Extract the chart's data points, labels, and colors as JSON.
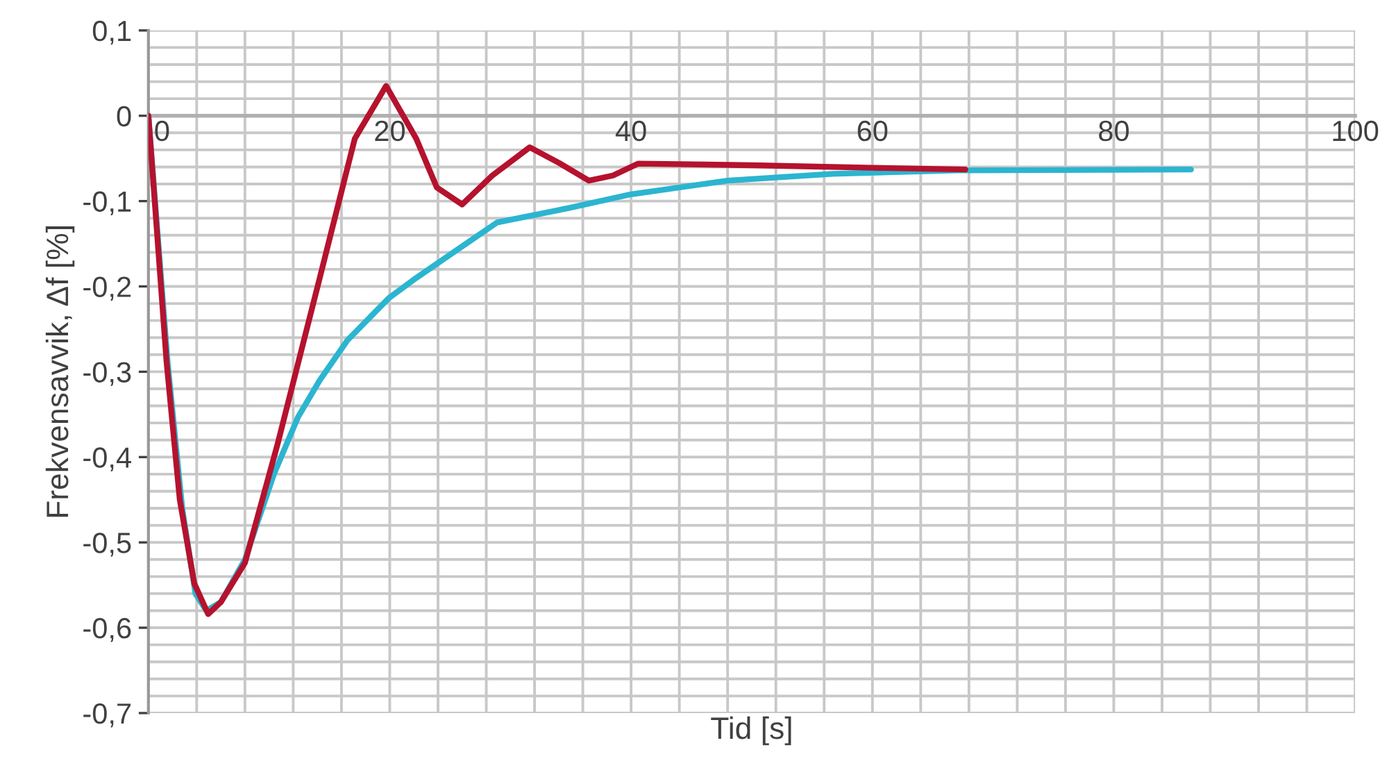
{
  "chart_data": {
    "type": "line",
    "xlabel": "Tid [s]",
    "ylabel": "Frekvensavvik, Δf [%]",
    "xlim": [
      0,
      100
    ],
    "ylim": [
      -0.7,
      0.1
    ],
    "xticks": [
      0,
      {
        "value": 4,
        "label": null
      },
      {
        "value": 8,
        "label": null
      },
      {
        "value": 12,
        "label": null
      },
      {
        "value": 16,
        "label": null
      },
      20,
      {
        "value": 24,
        "label": null
      },
      {
        "value": 28,
        "label": null
      },
      {
        "value": 32,
        "label": null
      },
      {
        "value": 36,
        "label": null
      },
      40,
      {
        "value": 44,
        "label": null
      },
      {
        "value": 48,
        "label": null
      },
      {
        "value": 52,
        "label": null
      },
      {
        "value": 56,
        "label": null
      },
      60,
      {
        "value": 64,
        "label": null
      },
      {
        "value": 68,
        "label": null
      },
      {
        "value": 72,
        "label": null
      },
      {
        "value": 76,
        "label": null
      },
      80,
      {
        "value": 84,
        "label": null
      },
      {
        "value": 88,
        "label": null
      },
      {
        "value": 92,
        "label": null
      },
      {
        "value": 96,
        "label": null
      },
      100
    ],
    "yticks": [
      {
        "value": -0.7,
        "label": "-0,7"
      },
      {
        "value": -0.68,
        "label": null
      },
      {
        "value": -0.66,
        "label": null
      },
      {
        "value": -0.64,
        "label": null
      },
      {
        "value": -0.62,
        "label": null
      },
      {
        "value": -0.6,
        "label": "-0,6"
      },
      {
        "value": -0.58,
        "label": null
      },
      {
        "value": -0.56,
        "label": null
      },
      {
        "value": -0.54,
        "label": null
      },
      {
        "value": -0.52,
        "label": null
      },
      {
        "value": -0.5,
        "label": "-0,5"
      },
      {
        "value": -0.48,
        "label": null
      },
      {
        "value": -0.46,
        "label": null
      },
      {
        "value": -0.44,
        "label": null
      },
      {
        "value": -0.42,
        "label": null
      },
      {
        "value": -0.4,
        "label": "-0,4"
      },
      {
        "value": -0.38,
        "label": null
      },
      {
        "value": -0.36,
        "label": null
      },
      {
        "value": -0.34,
        "label": null
      },
      {
        "value": -0.32,
        "label": null
      },
      {
        "value": -0.3,
        "label": "-0,3"
      },
      {
        "value": -0.28,
        "label": null
      },
      {
        "value": -0.26,
        "label": null
      },
      {
        "value": -0.24,
        "label": null
      },
      {
        "value": -0.22,
        "label": null
      },
      {
        "value": -0.2,
        "label": "-0,2"
      },
      {
        "value": -0.18,
        "label": null
      },
      {
        "value": -0.16,
        "label": null
      },
      {
        "value": -0.14,
        "label": null
      },
      {
        "value": -0.12,
        "label": null
      },
      {
        "value": -0.1,
        "label": "-0,1"
      },
      {
        "value": -0.08,
        "label": null
      },
      {
        "value": -0.06,
        "label": null
      },
      {
        "value": -0.04,
        "label": null
      },
      {
        "value": -0.02,
        "label": null
      },
      0,
      {
        "value": 0.02,
        "label": null
      },
      {
        "value": 0.04,
        "label": null
      },
      {
        "value": 0.06,
        "label": null
      },
      {
        "value": 0.08,
        "label": null
      },
      {
        "value": 0.1,
        "label": "0,1"
      }
    ],
    "grid": true,
    "marker": "none",
    "line_style": "solid",
    "series": [
      {
        "color": "#2bb5d0",
        "x": [
          0,
          1.6,
          2.8,
          3.9,
          4.8,
          6,
          8,
          10.4,
          12.4,
          14.2,
          16.5,
          19.9,
          22.2,
          25.9,
          28.9,
          34.9,
          40,
          48,
          56.7,
          67,
          86.4
        ],
        "values": [
          0,
          -0.29,
          -0.46,
          -0.56,
          -0.58,
          -0.57,
          -0.52,
          -0.42,
          -0.353,
          -0.31,
          -0.263,
          -0.214,
          -0.19,
          -0.154,
          -0.125,
          -0.108,
          -0.092,
          -0.076,
          -0.068,
          -0.064,
          -0.063
        ]
      },
      {
        "color": "#b5122e",
        "x": [
          0,
          1.5,
          2.6,
          3.8,
          4.95,
          6,
          8,
          10.7,
          14.2,
          17.1,
          19.7,
          22.2,
          23.9,
          26,
          28.5,
          31.6,
          34,
          36.5,
          38.5,
          40.6,
          50,
          60,
          67.7
        ],
        "values": [
          0,
          -0.288,
          -0.45,
          -0.548,
          -0.584,
          -0.57,
          -0.524,
          -0.385,
          -0.19,
          -0.027,
          0.035,
          -0.027,
          -0.084,
          -0.104,
          -0.07,
          -0.037,
          -0.055,
          -0.076,
          -0.07,
          -0.056,
          -0.058,
          -0.061,
          -0.063
        ]
      }
    ]
  }
}
